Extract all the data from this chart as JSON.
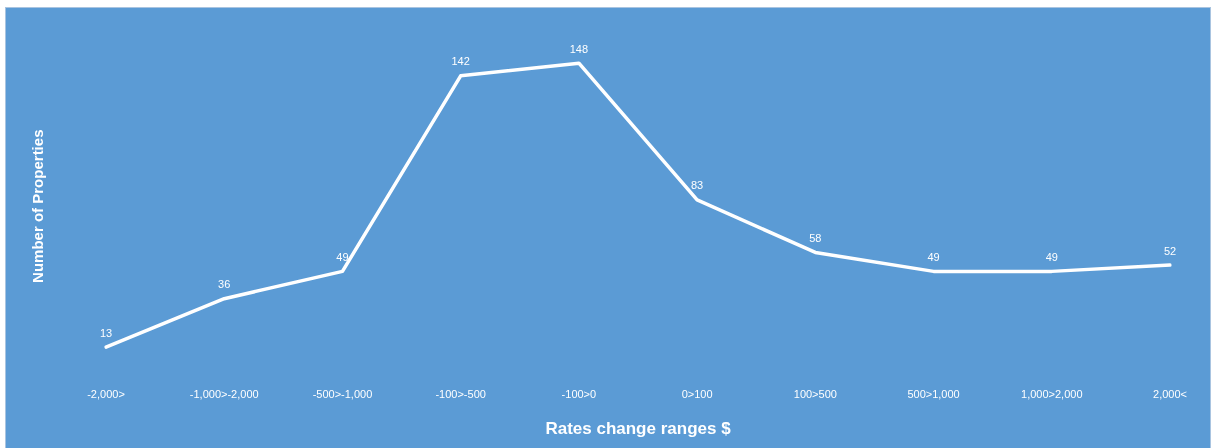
{
  "chart_data": {
    "type": "line",
    "xlabel": "Rates change ranges $",
    "ylabel": "Number of Properties",
    "categories": [
      "-2,000>",
      "-1,000>-2,000",
      "-500>-1,000",
      "-100>-500",
      "-100>0",
      "0>100",
      "100>500",
      "500>1,000",
      "1,000>2,000",
      "2,000<"
    ],
    "series": [
      {
        "color": "#ffffff",
        "values": [
          13,
          36,
          49,
          142,
          148,
          83,
          58,
          49,
          49,
          52
        ]
      }
    ],
    "data_labels": true,
    "grid": false,
    "legend": false,
    "marker": "none",
    "line_style": "solid"
  }
}
